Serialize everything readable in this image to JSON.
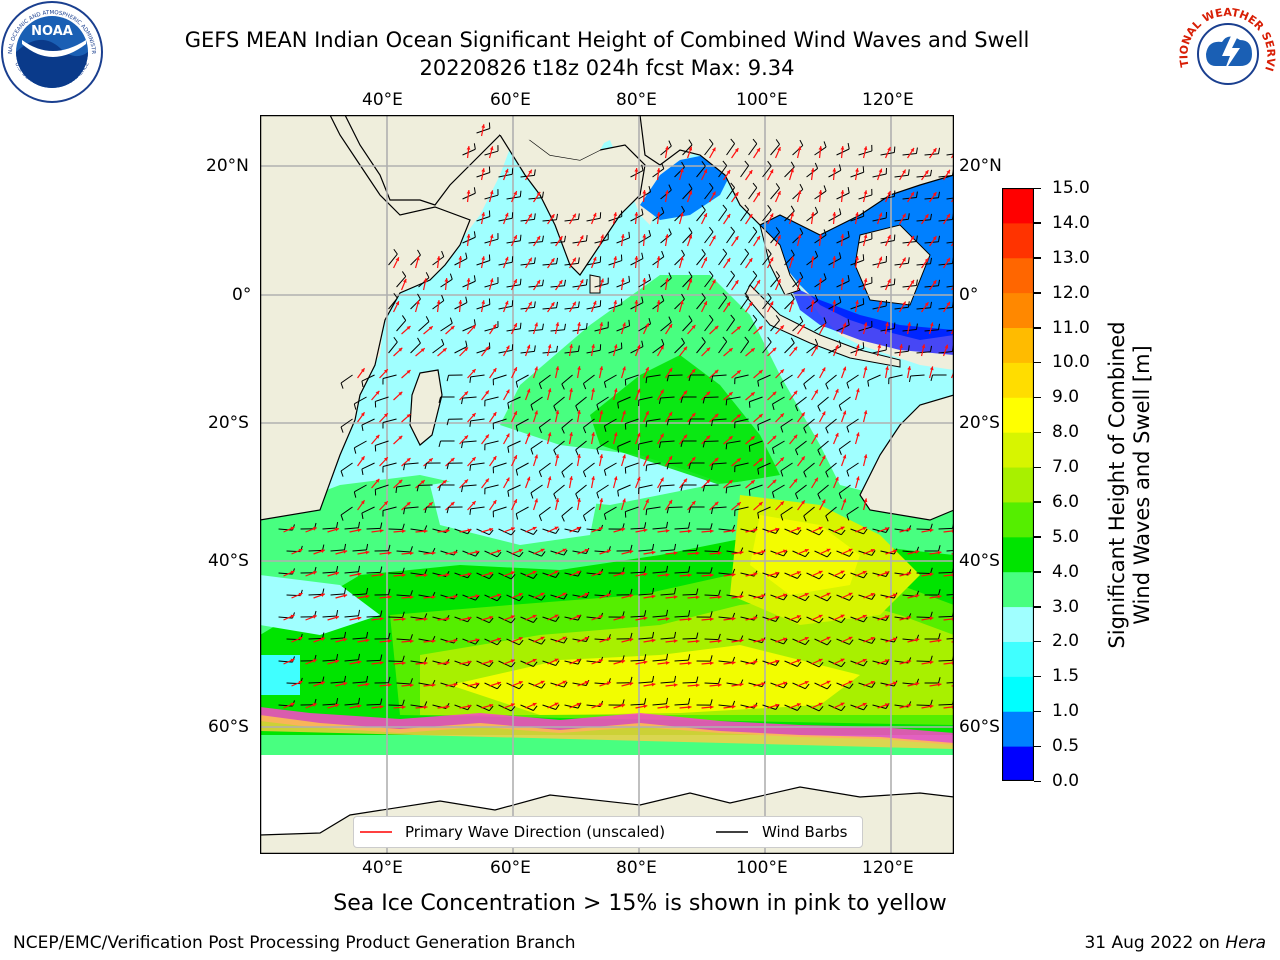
{
  "header": {
    "title_line1": "GEFS MEAN Indian Ocean Significant Height of Combined Wind Waves and Swell",
    "title_line2": "20220826 t18z 024h fcst   Max: 9.34",
    "left_logo": "NOAA",
    "left_logo_ring_top": "NATIONAL OCEANIC AND ATMOSPHERIC ADMINISTRATION",
    "left_logo_ring_bottom": "U.S. DEPARTMENT OF COMMERCE",
    "right_logo_ring": "NATIONAL WEATHER SERVICE"
  },
  "map": {
    "region": "Indian Ocean",
    "lon_range": [
      20,
      130
    ],
    "lat_range": [
      -73,
      28
    ],
    "top_lon_ticks": [
      "40°E",
      "60°E",
      "80°E",
      "100°E",
      "120°E"
    ],
    "bottom_lon_ticks": [
      "40°E",
      "60°E",
      "80°E",
      "100°E",
      "120°E"
    ],
    "left_lat_ticks": [
      "20°N",
      "0°",
      "20°S",
      "40°S",
      "60°S"
    ],
    "right_lat_ticks": [
      "20°N",
      "0°",
      "20°S",
      "40°S",
      "60°S"
    ],
    "land_color": "#efeedc",
    "ice_color": "#ffffff",
    "legend": {
      "wave_label": "Primary Wave Direction (unscaled)",
      "wind_label": "Wind Barbs",
      "wave_color": "#ff0000",
      "wind_color": "#000000"
    }
  },
  "colorbar": {
    "label_line1": "Significant Height of Combined",
    "label_line2": "Wind Waves and Swell [m]",
    "ticks": [
      "0.0",
      "0.5",
      "1.0",
      "1.5",
      "2.0",
      "3.0",
      "4.0",
      "5.0",
      "6.0",
      "7.0",
      "8.0",
      "9.0",
      "10.0",
      "11.0",
      "12.0",
      "13.0",
      "14.0",
      "15.0"
    ],
    "colors": [
      "#0000ff",
      "#0080ff",
      "#00ffff",
      "#40ffff",
      "#a0ffff",
      "#48ff80",
      "#00e400",
      "#55ee00",
      "#a8f000",
      "#d7f500",
      "#ffff00",
      "#ffdd00",
      "#ffbb00",
      "#ff8800",
      "#ff6600",
      "#ff3300",
      "#ff0000"
    ]
  },
  "caption": "Sea Ice Concentration > 15% is shown in pink to yellow",
  "footer": {
    "left": "NCEP/EMC/Verification Post Processing Product Generation Branch",
    "right_date": "31 Aug 2022 on",
    "right_host": "Hera"
  }
}
